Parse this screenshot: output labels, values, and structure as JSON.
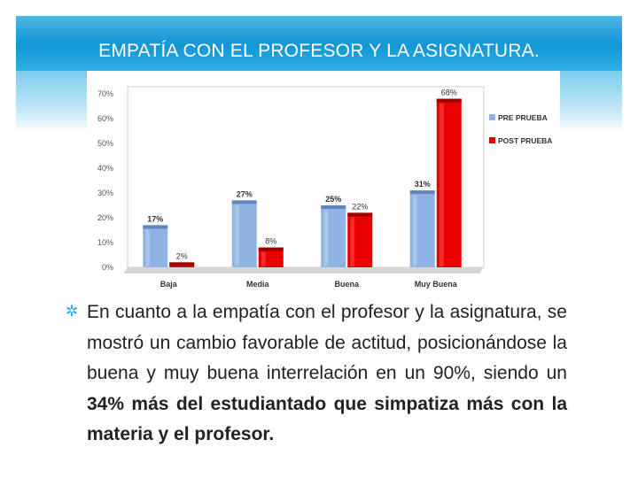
{
  "slide": {
    "title": "EMPATÍA CON EL PROFESOR Y LA ASIGNATURA.",
    "accent_color": "#1a9ad9"
  },
  "chart_data": {
    "type": "bar",
    "categories": [
      "Baja",
      "Media",
      "Buena",
      "Muy Buena"
    ],
    "series": [
      {
        "name": "PRE PRUEBA",
        "color": "#8fb4e3",
        "values": [
          17,
          27,
          25,
          31
        ],
        "labels": [
          "17%",
          "27%",
          "25%",
          "31%"
        ]
      },
      {
        "name": "POST PRUEBA",
        "color": "#e80000",
        "values": [
          2,
          8,
          22,
          68
        ],
        "labels": [
          "2%",
          "8%",
          "22%",
          "68%"
        ]
      }
    ],
    "yticks": [
      "0%",
      "10%",
      "20%",
      "30%",
      "40%",
      "50%",
      "60%",
      "70%"
    ],
    "ylim": [
      0,
      70
    ],
    "legend_position": "right",
    "grid": false
  },
  "bullet": {
    "icon": "star-icon",
    "plain": "En cuanto a la empatía con el profesor y la asignatura, se mostró un cambio favorable de actitud, posicionándose la buena y muy buena interrelación en un 90%, siendo un ",
    "bold": "34% más del estudiantado que simpatiza más con la materia y el profesor."
  }
}
